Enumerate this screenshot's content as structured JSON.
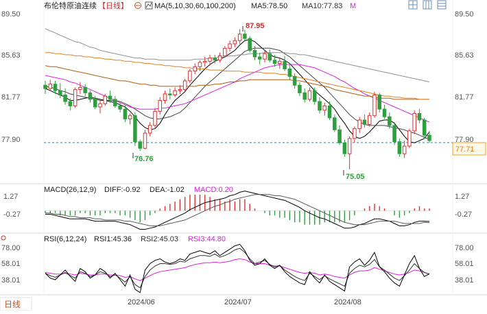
{
  "header": {
    "title": "布伦特原油连续",
    "period": "【日线】",
    "ma_label": "MA(5,10,30,60,100,200)",
    "ma5": "MA5:78.50",
    "ma10": "MA10:77.83",
    "more": "M"
  },
  "macd_header": {
    "label": "MACD(26,12,9)",
    "diff": "DIFF:-0.92",
    "dea": "DEA:-1.02",
    "macd": "MACD:0.20"
  },
  "rsi_header": {
    "label": "RSI(6,12,24)",
    "rsi1": "RSI1:45.36",
    "rsi2": "RSI2:45.03",
    "rsi3": "RSI3:44.80"
  },
  "footer": {
    "period_button": "日线"
  },
  "price_axis": {
    "ticks": [
      "89.50",
      "85.63",
      "81.77",
      "77.90"
    ],
    "last_price": "77.71"
  },
  "macd_axis": {
    "ticks": [
      "1.27",
      "-0.27"
    ]
  },
  "rsi_axis": {
    "ticks": [
      "78.00",
      "58.01",
      "38.01"
    ]
  },
  "x_axis": {
    "ticks": [
      "2024/06",
      "2024/07",
      "2024/08"
    ]
  },
  "annotations": {
    "high": "87.95",
    "low1": "76.76",
    "low2": "75.05"
  },
  "colors": {
    "up": "#e03030",
    "down": "#2e9e3e",
    "ma5": "#000000",
    "ma10": "#444444",
    "ma30": "#e020e0",
    "ma60": "#b05c10",
    "ma100": "#e08020",
    "ma200": "#909090",
    "rsi1": "#000000",
    "rsi2": "#333333",
    "rsi3": "#e020e0",
    "last": "#f0a020"
  },
  "chart_data": {
    "type": "candlestick",
    "price_range": [
      73.5,
      90.5
    ],
    "candles": [
      [
        82.8,
        83.2,
        82.0,
        82.5
      ],
      [
        82.5,
        83.3,
        82.3,
        82.9
      ],
      [
        82.9,
        83.2,
        82.0,
        82.3
      ],
      [
        82.3,
        83.0,
        81.6,
        81.9
      ],
      [
        81.9,
        82.5,
        81.0,
        81.3
      ],
      [
        81.3,
        81.6,
        80.5,
        80.9
      ],
      [
        80.9,
        82.6,
        80.7,
        82.4
      ],
      [
        82.4,
        83.1,
        82.0,
        82.6
      ],
      [
        82.6,
        82.9,
        81.8,
        82.1
      ],
      [
        82.1,
        82.3,
        81.2,
        81.5
      ],
      [
        81.5,
        81.8,
        80.6,
        80.8
      ],
      [
        80.8,
        81.4,
        80.2,
        81.1
      ],
      [
        81.1,
        82.0,
        80.9,
        81.8
      ],
      [
        81.8,
        82.3,
        81.2,
        81.5
      ],
      [
        81.5,
        81.8,
        80.7,
        80.9
      ],
      [
        80.9,
        81.2,
        80.3,
        80.6
      ],
      [
        80.6,
        81.0,
        79.4,
        79.7
      ],
      [
        79.7,
        80.2,
        79.2,
        80.0
      ],
      [
        80.0,
        80.3,
        77.2,
        77.6
      ],
      [
        77.6,
        77.8,
        76.76,
        77.0
      ],
      [
        77.0,
        78.7,
        76.9,
        78.4
      ],
      [
        78.4,
        79.4,
        78.1,
        79.1
      ],
      [
        79.1,
        80.7,
        78.9,
        80.4
      ],
      [
        80.4,
        81.7,
        80.1,
        81.4
      ],
      [
        81.4,
        82.3,
        81.1,
        82.0
      ],
      [
        82.0,
        82.5,
        81.5,
        81.9
      ],
      [
        81.9,
        82.6,
        81.7,
        82.3
      ],
      [
        82.3,
        82.8,
        82.0,
        82.4
      ],
      [
        82.4,
        83.4,
        82.2,
        83.2
      ],
      [
        83.2,
        84.3,
        83.0,
        84.1
      ],
      [
        84.1,
        84.8,
        83.8,
        84.5
      ],
      [
        84.5,
        85.1,
        84.1,
        84.9
      ],
      [
        84.9,
        85.4,
        84.5,
        85.0
      ],
      [
        85.0,
        85.6,
        84.6,
        85.3
      ],
      [
        85.3,
        85.6,
        84.8,
        85.1
      ],
      [
        85.1,
        85.8,
        84.9,
        85.5
      ],
      [
        85.5,
        86.4,
        85.3,
        86.2
      ],
      [
        86.2,
        86.9,
        85.9,
        86.6
      ],
      [
        86.6,
        87.2,
        86.3,
        86.9
      ],
      [
        86.9,
        87.95,
        86.6,
        87.5
      ],
      [
        87.5,
        87.9,
        86.9,
        87.1
      ],
      [
        87.1,
        87.3,
        85.8,
        86.0
      ],
      [
        86.0,
        86.4,
        85.1,
        85.4
      ],
      [
        85.4,
        85.8,
        84.7,
        85.2
      ],
      [
        85.2,
        86.0,
        84.9,
        85.7
      ],
      [
        85.7,
        86.1,
        84.9,
        85.1
      ],
      [
        85.1,
        85.6,
        84.5,
        84.8
      ],
      [
        84.8,
        85.3,
        84.3,
        85.0
      ],
      [
        85.0,
        85.5,
        84.1,
        84.3
      ],
      [
        84.3,
        84.8,
        83.3,
        83.6
      ],
      [
        83.6,
        83.9,
        82.5,
        82.8
      ],
      [
        82.8,
        83.1,
        81.8,
        82.1
      ],
      [
        82.1,
        82.5,
        81.2,
        81.5
      ],
      [
        81.5,
        82.6,
        81.3,
        82.3
      ],
      [
        82.3,
        82.6,
        81.0,
        81.3
      ],
      [
        81.3,
        81.7,
        80.2,
        80.5
      ],
      [
        80.5,
        81.2,
        80.0,
        80.9
      ],
      [
        80.9,
        81.3,
        79.6,
        79.8
      ],
      [
        79.8,
        80.1,
        78.5,
        78.7
      ],
      [
        78.7,
        79.1,
        77.3,
        77.5
      ],
      [
        77.5,
        77.8,
        76.2,
        76.5
      ],
      [
        76.5,
        78.1,
        75.05,
        77.9
      ],
      [
        77.9,
        79.0,
        77.5,
        78.8
      ],
      [
        78.8,
        79.9,
        78.4,
        79.6
      ],
      [
        79.6,
        80.1,
        78.9,
        79.2
      ],
      [
        79.2,
        80.3,
        79.0,
        80.0
      ],
      [
        80.0,
        82.2,
        79.8,
        81.9
      ],
      [
        81.9,
        82.1,
        80.3,
        80.6
      ],
      [
        80.6,
        81.0,
        79.7,
        79.9
      ],
      [
        79.9,
        80.3,
        78.8,
        79.1
      ],
      [
        79.1,
        79.4,
        77.3,
        77.6
      ],
      [
        77.6,
        77.9,
        76.2,
        76.5
      ],
      [
        76.5,
        77.7,
        76.1,
        77.2
      ],
      [
        77.2,
        78.8,
        77.0,
        78.6
      ],
      [
        78.6,
        80.5,
        78.3,
        80.2
      ],
      [
        80.2,
        80.6,
        79.3,
        79.6
      ],
      [
        79.6,
        79.8,
        77.9,
        78.2
      ],
      [
        78.2,
        78.6,
        77.5,
        77.71
      ]
    ],
    "ma": {
      "MA5": [
        82.5,
        82.3,
        82.1,
        81.9,
        81.7,
        81.4,
        81.4,
        81.5,
        81.6,
        81.7,
        81.6,
        81.5,
        81.4,
        81.3,
        81.2,
        81.0,
        80.8,
        80.4,
        79.9,
        79.3,
        78.9,
        78.7,
        78.8,
        79.3,
        80.1,
        80.8,
        81.4,
        81.8,
        82.2,
        82.8,
        83.3,
        83.8,
        84.3,
        84.7,
        85.0,
        85.2,
        85.4,
        85.7,
        86.0,
        86.5,
        86.9,
        87.0,
        86.8,
        86.4,
        86.0,
        85.6,
        85.4,
        85.3,
        85.1,
        84.8,
        84.3,
        83.8,
        83.3,
        82.8,
        82.3,
        81.9,
        81.5,
        81.1,
        80.6,
        79.9,
        79.3,
        78.6,
        78.1,
        77.9,
        78.1,
        78.5,
        79.0,
        79.5,
        79.6,
        79.6,
        79.3,
        78.7,
        78.1,
        77.6,
        77.5,
        77.7,
        77.9,
        78.5
      ],
      "MA10": [
        82.7,
        82.6,
        82.5,
        82.3,
        82.2,
        82.0,
        81.9,
        81.8,
        81.7,
        81.6,
        81.5,
        81.4,
        81.4,
        81.4,
        81.4,
        81.3,
        81.1,
        80.9,
        80.6,
        80.3,
        80.0,
        79.8,
        79.7,
        79.7,
        79.8,
        79.9,
        80.1,
        80.3,
        80.7,
        81.2,
        81.7,
        82.2,
        82.7,
        83.1,
        83.5,
        83.9,
        84.3,
        84.7,
        85.1,
        85.5,
        85.9,
        86.1,
        86.2,
        86.2,
        86.2,
        86.2,
        86.1,
        86.0,
        85.7,
        85.4,
        85.0,
        84.6,
        84.2,
        83.8,
        83.4,
        83.0,
        82.6,
        82.1,
        81.6,
        81.1,
        80.6,
        80.1,
        79.7,
        79.4,
        79.2,
        79.1,
        79.1,
        79.1,
        79.1,
        79.0,
        78.9,
        78.8,
        78.7,
        78.5,
        78.4,
        78.2,
        78.0,
        77.83
      ],
      "MA30": [
        83.7,
        83.6,
        83.5,
        83.4,
        83.3,
        83.1,
        83.0,
        82.8,
        82.6,
        82.4,
        82.2,
        82.0,
        81.8,
        81.6,
        81.4,
        81.2,
        81.0,
        80.8,
        80.7,
        80.6,
        80.6,
        80.6,
        80.6,
        80.7,
        80.7,
        80.8,
        80.9,
        81.0,
        81.1,
        81.3,
        81.5,
        81.7,
        81.9,
        82.1,
        82.3,
        82.5,
        82.7,
        82.9,
        83.1,
        83.4,
        83.6,
        83.8,
        84.0,
        84.2,
        84.4,
        84.5,
        84.6,
        84.7,
        84.7,
        84.7,
        84.7,
        84.7,
        84.6,
        84.5,
        84.4,
        84.2,
        84.0,
        83.8,
        83.6,
        83.3,
        83.1,
        82.8,
        82.5,
        82.3,
        82.0,
        81.8,
        81.6,
        81.4,
        81.2,
        81.0,
        80.8,
        80.6,
        80.4,
        80.2,
        80.0,
        79.8,
        79.6,
        79.4
      ],
      "MA60": [
        84.6,
        84.5,
        84.5,
        84.4,
        84.3,
        84.2,
        84.1,
        84.0,
        83.9,
        83.8,
        83.7,
        83.6,
        83.5,
        83.4,
        83.3,
        83.2,
        83.2,
        83.1,
        83.0,
        82.9,
        82.9,
        82.8,
        82.8,
        82.7,
        82.7,
        82.7,
        82.7,
        82.7,
        82.7,
        82.7,
        82.7,
        82.8,
        82.8,
        82.8,
        82.9,
        82.9,
        83.0,
        83.1,
        83.1,
        83.2,
        83.2,
        83.3,
        83.3,
        83.3,
        83.3,
        83.3,
        83.3,
        83.3,
        83.3,
        83.3,
        83.2,
        83.2,
        83.1,
        83.0,
        82.9,
        82.8,
        82.7,
        82.6,
        82.4,
        82.3,
        82.2,
        82.1,
        82.0,
        81.9,
        81.8,
        81.8,
        81.7,
        81.6,
        81.6,
        81.6,
        81.5,
        81.5,
        81.5,
        81.5,
        81.5,
        81.5,
        81.5,
        81.5
      ],
      "MA100": [
        85.8,
        85.8,
        85.7,
        85.7,
        85.6,
        85.6,
        85.5,
        85.5,
        85.4,
        85.4,
        85.3,
        85.3,
        85.2,
        85.2,
        85.1,
        85.1,
        85.0,
        85.0,
        84.9,
        84.9,
        84.8,
        84.8,
        84.7,
        84.7,
        84.6,
        84.6,
        84.5,
        84.5,
        84.4,
        84.4,
        84.3,
        84.3,
        84.3,
        84.2,
        84.2,
        84.2,
        84.1,
        84.1,
        84.1,
        84.1,
        84.0,
        84.0,
        84.0,
        84.0,
        83.9,
        83.9,
        83.9,
        83.8,
        83.8,
        83.7,
        83.6,
        83.5,
        83.4,
        83.3,
        83.2,
        83.1,
        83.0,
        82.9,
        82.8,
        82.7,
        82.6,
        82.5,
        82.4,
        82.3,
        82.2,
        82.1,
        82.0,
        81.9,
        81.8,
        81.8,
        81.7,
        81.7,
        81.6,
        81.6,
        81.6,
        81.5,
        81.5,
        81.5
      ],
      "MA200": [
        88.0,
        87.8,
        87.6,
        87.4,
        87.2,
        87.0,
        86.8,
        86.7,
        86.5,
        86.3,
        86.2,
        86.0,
        85.9,
        85.8,
        85.7,
        85.6,
        85.5,
        85.4,
        85.3,
        85.3,
        85.2,
        85.2,
        85.2,
        85.1,
        85.1,
        85.1,
        85.1,
        85.1,
        85.1,
        85.1,
        85.2,
        85.2,
        85.2,
        85.3,
        85.3,
        85.4,
        85.4,
        85.5,
        85.5,
        85.6,
        85.6,
        85.7,
        85.7,
        85.7,
        85.8,
        85.8,
        85.8,
        85.8,
        85.8,
        85.7,
        85.7,
        85.6,
        85.6,
        85.5,
        85.4,
        85.3,
        85.2,
        85.1,
        85.0,
        84.9,
        84.8,
        84.7,
        84.6,
        84.5,
        84.4,
        84.3,
        84.2,
        84.1,
        84.0,
        83.9,
        83.8,
        83.7,
        83.6,
        83.5,
        83.4,
        83.3,
        83.2,
        83.1
      ]
    },
    "macd": {
      "range": [
        -1.8,
        2.2
      ],
      "diff": [
        -0.3,
        -0.3,
        -0.4,
        -0.5,
        -0.6,
        -0.7,
        -0.7,
        -0.7,
        -0.7,
        -0.8,
        -0.9,
        -0.9,
        -0.9,
        -0.9,
        -0.9,
        -1.0,
        -1.1,
        -1.2,
        -1.4,
        -1.6,
        -1.6,
        -1.5,
        -1.4,
        -1.2,
        -1.0,
        -0.8,
        -0.6,
        -0.4,
        -0.2,
        0.1,
        0.3,
        0.5,
        0.7,
        0.8,
        0.9,
        1.0,
        1.1,
        1.3,
        1.4,
        1.6,
        1.7,
        1.6,
        1.5,
        1.4,
        1.3,
        1.2,
        1.1,
        1.0,
        0.9,
        0.7,
        0.5,
        0.3,
        0.0,
        -0.2,
        -0.4,
        -0.6,
        -0.7,
        -0.9,
        -1.1,
        -1.3,
        -1.5,
        -1.5,
        -1.4,
        -1.2,
        -1.1,
        -0.9,
        -0.7,
        -0.7,
        -0.8,
        -0.9,
        -1.1,
        -1.3,
        -1.3,
        -1.2,
        -1.0,
        -0.9,
        -0.9,
        -0.92
      ],
      "dea": [
        -0.2,
        -0.2,
        -0.3,
        -0.3,
        -0.4,
        -0.5,
        -0.5,
        -0.6,
        -0.6,
        -0.6,
        -0.7,
        -0.7,
        -0.8,
        -0.8,
        -0.8,
        -0.8,
        -0.9,
        -0.9,
        -1.0,
        -1.1,
        -1.2,
        -1.3,
        -1.3,
        -1.3,
        -1.2,
        -1.1,
        -1.0,
        -0.9,
        -0.8,
        -0.6,
        -0.4,
        -0.2,
        0.0,
        0.2,
        0.4,
        0.5,
        0.7,
        0.8,
        1.0,
        1.1,
        1.2,
        1.3,
        1.4,
        1.4,
        1.4,
        1.4,
        1.3,
        1.3,
        1.2,
        1.1,
        1.0,
        0.8,
        0.6,
        0.4,
        0.2,
        0.0,
        -0.2,
        -0.4,
        -0.6,
        -0.8,
        -1.0,
        -1.1,
        -1.2,
        -1.2,
        -1.2,
        -1.1,
        -1.0,
        -0.9,
        -0.9,
        -0.9,
        -0.9,
        -1.0,
        -1.1,
        -1.1,
        -1.1,
        -1.1,
        -1.0,
        -1.02
      ]
    },
    "rsi": {
      "range": [
        20,
        90
      ],
      "rsi1": [
        46,
        40,
        38,
        44,
        50,
        42,
        36,
        52,
        48,
        40,
        44,
        52,
        48,
        40,
        46,
        38,
        30,
        44,
        26,
        22,
        50,
        58,
        62,
        64,
        60,
        58,
        60,
        64,
        62,
        70,
        72,
        74,
        72,
        70,
        74,
        68,
        72,
        76,
        80,
        82,
        74,
        62,
        56,
        58,
        64,
        56,
        52,
        56,
        48,
        42,
        38,
        34,
        32,
        48,
        40,
        34,
        44,
        36,
        32,
        28,
        24,
        54,
        60,
        64,
        56,
        62,
        72,
        54,
        48,
        40,
        34,
        30,
        44,
        58,
        68,
        52,
        42,
        45.36
      ],
      "rsi2": [
        46,
        43,
        41,
        44,
        47,
        43,
        40,
        48,
        46,
        42,
        44,
        48,
        46,
        42,
        44,
        40,
        35,
        42,
        32,
        28,
        42,
        50,
        55,
        58,
        58,
        57,
        58,
        61,
        60,
        64,
        66,
        68,
        68,
        67,
        70,
        66,
        68,
        71,
        75,
        77,
        72,
        64,
        58,
        60,
        62,
        57,
        54,
        56,
        50,
        46,
        42,
        39,
        37,
        46,
        42,
        38,
        43,
        39,
        36,
        33,
        30,
        46,
        52,
        56,
        54,
        57,
        63,
        54,
        50,
        45,
        40,
        37,
        43,
        50,
        58,
        52,
        47,
        45.03
      ],
      "rsi3": [
        47,
        46,
        45,
        45,
        46,
        45,
        44,
        46,
        45,
        44,
        44,
        45,
        45,
        44,
        44,
        43,
        41,
        42,
        39,
        37,
        40,
        43,
        46,
        48,
        49,
        50,
        51,
        52,
        53,
        55,
        57,
        58,
        59,
        59,
        60,
        59,
        60,
        61,
        63,
        64,
        63,
        60,
        58,
        58,
        58,
        56,
        55,
        55,
        53,
        51,
        49,
        47,
        46,
        47,
        46,
        44,
        45,
        44,
        42,
        41,
        40,
        44,
        47,
        49,
        49,
        50,
        53,
        51,
        49,
        47,
        45,
        44,
        45,
        47,
        50,
        49,
        47,
        44.8
      ]
    }
  }
}
